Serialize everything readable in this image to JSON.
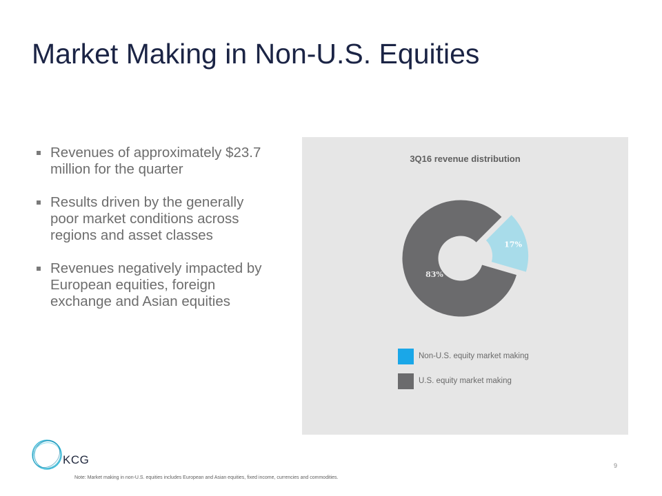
{
  "page": {
    "title": "Market Making in Non-U.S. Equities",
    "page_number": "9",
    "footnote": "Note: Market making in non-U.S. equities includes European and Asian equities, fixed income, currencies and commodities."
  },
  "bullets": [
    "Revenues of approximately $23.7 million for the quarter",
    "Results driven by the generally poor market conditions across regions and asset classes",
    "Revenues negatively impacted by European equities, foreign exchange and Asian equities"
  ],
  "logo": {
    "text": "KCG",
    "icon": "kcg-ring-logo"
  },
  "chart_data": {
    "type": "pie",
    "title": "3Q16 revenue distribution",
    "variant": "donut",
    "slices": [
      {
        "name": "Non-U.S. equity market making",
        "value": 17,
        "label": "17%",
        "exploded": true
      },
      {
        "name": "U.S. equity market making",
        "value": 83,
        "label": "83%",
        "exploded": false
      }
    ],
    "legend_position": "bottom",
    "legend": [
      {
        "name": "Non-U.S. equity market making",
        "color": "#1aa7e8"
      },
      {
        "name": "U.S. equity market making",
        "color": "#6b6b6d"
      }
    ],
    "slice_colors": [
      "#a8dcea",
      "#6b6b6d"
    ]
  }
}
